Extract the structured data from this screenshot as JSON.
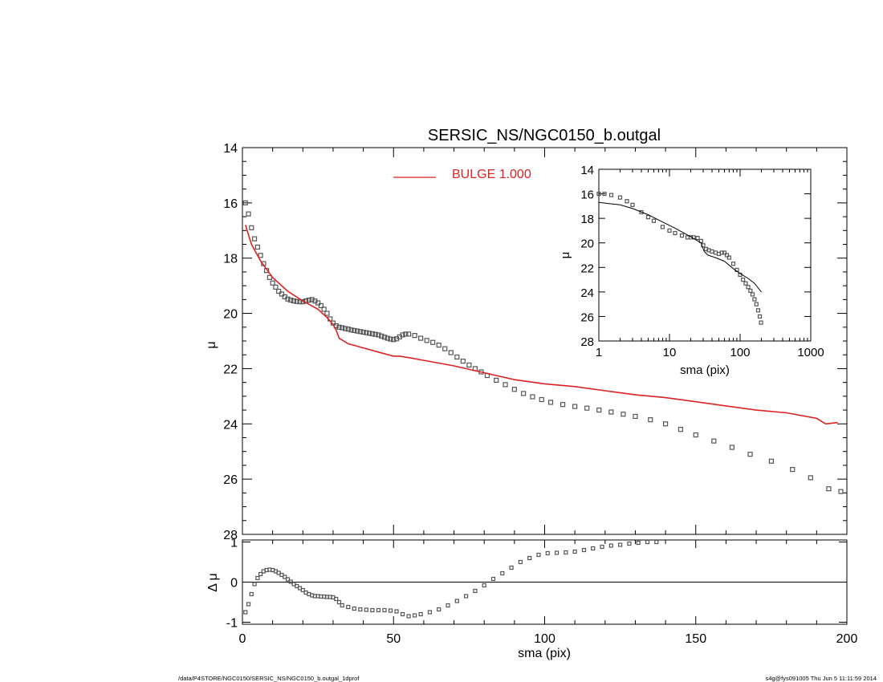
{
  "title": "SERSIC_NS/NGC0150_b.outgal",
  "footer": {
    "left": "/data/P4STORE/NGC0150/SERSIC_NS/NGC0150_b.outgal_1dprof",
    "right": "s4g@fys091005  Thu Jun  5 11:11:59 2014"
  },
  "colors": {
    "model": "#dd2222",
    "data": "#555555",
    "axes": "#000000",
    "inset_model": "#000000"
  },
  "chart_data": [
    {
      "id": "main",
      "type": "scatter",
      "xlabel": "",
      "ylabel": "μ",
      "xlim": [
        0,
        200
      ],
      "ylim": [
        28,
        14
      ],
      "y_inverted": true,
      "xticks": [],
      "yticks": [
        14,
        16,
        18,
        20,
        22,
        24,
        26,
        28
      ],
      "legend": {
        "label": "BULGE  1.000",
        "placement": "top-center"
      },
      "series": [
        {
          "name": "BULGE  1.000",
          "style": "line",
          "x": [
            1,
            3,
            6,
            10,
            15,
            20,
            25,
            28,
            30,
            31,
            32,
            35,
            40,
            45,
            50,
            52,
            55,
            60,
            70,
            80,
            90,
            100,
            110,
            120,
            130,
            140,
            150,
            160,
            170,
            180,
            190,
            193,
            197
          ],
          "values": [
            16.8,
            17.5,
            18.1,
            18.7,
            19.2,
            19.55,
            19.85,
            20.15,
            20.4,
            20.6,
            20.9,
            21.1,
            21.25,
            21.4,
            21.55,
            21.55,
            21.6,
            21.7,
            21.9,
            22.15,
            22.4,
            22.55,
            22.65,
            22.8,
            22.95,
            23.05,
            23.2,
            23.35,
            23.5,
            23.6,
            23.8,
            24.0,
            23.95
          ]
        },
        {
          "style": "markers",
          "x": [
            1,
            2,
            3,
            4,
            5,
            6,
            7,
            8,
            9,
            10,
            11,
            12,
            13,
            14,
            15,
            16,
            17,
            18,
            19,
            20,
            21,
            22,
            23,
            24,
            25,
            26,
            27,
            28,
            29,
            30,
            31,
            32,
            33,
            34,
            35,
            36,
            37,
            38,
            39,
            40,
            41,
            42,
            43,
            44,
            45,
            46,
            47,
            48,
            49,
            50,
            51,
            52,
            53,
            54,
            55,
            57,
            59,
            61,
            63,
            65,
            67,
            69,
            71,
            73,
            75,
            77,
            79,
            81,
            84,
            87,
            90,
            93,
            96,
            99,
            102,
            106,
            110,
            114,
            118,
            122,
            126,
            130,
            135,
            140,
            145,
            150,
            156,
            162,
            168,
            175,
            182,
            188,
            194,
            198
          ],
          "values": [
            16.0,
            16.4,
            16.9,
            17.3,
            17.6,
            17.9,
            18.2,
            18.45,
            18.7,
            18.9,
            19.05,
            19.2,
            19.3,
            19.4,
            19.48,
            19.52,
            19.55,
            19.57,
            19.58,
            19.58,
            19.55,
            19.52,
            19.5,
            19.55,
            19.62,
            19.72,
            19.85,
            20.0,
            20.2,
            20.35,
            20.45,
            20.5,
            20.52,
            20.55,
            20.57,
            20.6,
            20.62,
            20.64,
            20.66,
            20.68,
            20.7,
            20.72,
            20.74,
            20.76,
            20.78,
            20.82,
            20.86,
            20.9,
            20.93,
            20.95,
            20.92,
            20.85,
            20.78,
            20.75,
            20.75,
            20.8,
            20.9,
            20.98,
            21.05,
            21.15,
            21.28,
            21.42,
            21.58,
            21.73,
            21.87,
            22.0,
            22.12,
            22.25,
            22.42,
            22.58,
            22.75,
            22.9,
            23.02,
            23.12,
            23.22,
            23.3,
            23.37,
            23.43,
            23.5,
            23.57,
            23.65,
            23.73,
            23.85,
            24.0,
            24.2,
            24.4,
            24.62,
            24.85,
            25.1,
            25.35,
            25.65,
            25.95,
            26.35,
            26.45
          ]
        }
      ]
    },
    {
      "id": "inset",
      "type": "scatter",
      "xlabel": "sma (pix)",
      "ylabel": "μ",
      "x_scale": "log",
      "xlim": [
        1,
        1000
      ],
      "ylim": [
        28,
        14
      ],
      "y_inverted": true,
      "xticks": [
        "1",
        "10",
        "100",
        "1000"
      ],
      "yticks": [
        14,
        16,
        18,
        20,
        22,
        24,
        26,
        28
      ],
      "series": [
        {
          "style": "line",
          "x": [
            1,
            2,
            3,
            5,
            8,
            12,
            20,
            28,
            31,
            35,
            45,
            60,
            80,
            100,
            130,
            160,
            200
          ],
          "values": [
            16.7,
            16.9,
            17.2,
            17.7,
            18.3,
            18.8,
            19.5,
            20.0,
            20.7,
            21.0,
            21.2,
            21.5,
            22.1,
            22.5,
            22.9,
            23.3,
            24.0
          ]
        },
        {
          "style": "markers",
          "x": [
            1,
            1.2,
            1.5,
            2,
            2.5,
            3,
            4,
            5,
            6,
            8,
            10,
            12,
            15,
            18,
            20,
            22,
            25,
            28,
            30,
            33,
            36,
            40,
            45,
            50,
            55,
            60,
            65,
            70,
            80,
            90,
            100,
            110,
            120,
            130,
            140,
            150,
            160,
            170,
            180,
            190,
            198
          ],
          "values": [
            16.0,
            16.0,
            16.1,
            16.3,
            16.6,
            16.9,
            17.5,
            17.9,
            18.2,
            18.7,
            19.0,
            19.2,
            19.4,
            19.55,
            19.55,
            19.55,
            19.6,
            19.85,
            20.2,
            20.5,
            20.6,
            20.7,
            20.8,
            20.9,
            20.8,
            20.8,
            21.0,
            21.2,
            21.7,
            22.2,
            22.6,
            23.0,
            23.3,
            23.6,
            23.9,
            24.2,
            24.6,
            25.0,
            25.5,
            26.0,
            26.5
          ]
        }
      ]
    },
    {
      "id": "residual",
      "type": "scatter",
      "xlabel": "sma (pix)",
      "ylabel": "Δ μ",
      "xlim": [
        0,
        200
      ],
      "ylim": [
        -1.05,
        1.05
      ],
      "xticks": [
        0,
        50,
        100,
        150,
        200
      ],
      "yticks": [
        -1,
        0,
        1
      ],
      "zero_line": true,
      "series": [
        {
          "style": "markers",
          "x": [
            1,
            2,
            3,
            4,
            5,
            6,
            7,
            8,
            9,
            10,
            11,
            12,
            13,
            14,
            15,
            16,
            17,
            18,
            19,
            20,
            21,
            22,
            23,
            24,
            25,
            26,
            27,
            28,
            29,
            30,
            31,
            32,
            33,
            35,
            37,
            39,
            41,
            43,
            45,
            47,
            49,
            51,
            53,
            55,
            57,
            59,
            62,
            65,
            68,
            71,
            74,
            77,
            80,
            83,
            86,
            89,
            92,
            95,
            98,
            101,
            104,
            107,
            110,
            113,
            116,
            119,
            122,
            125,
            128,
            131,
            134,
            137
          ],
          "values": [
            -0.75,
            -0.55,
            -0.3,
            -0.05,
            0.1,
            0.2,
            0.27,
            0.3,
            0.31,
            0.3,
            0.27,
            0.23,
            0.18,
            0.13,
            0.07,
            0.01,
            -0.05,
            -0.1,
            -0.15,
            -0.2,
            -0.26,
            -0.3,
            -0.33,
            -0.35,
            -0.35,
            -0.36,
            -0.36,
            -0.37,
            -0.37,
            -0.38,
            -0.42,
            -0.5,
            -0.58,
            -0.62,
            -0.66,
            -0.68,
            -0.69,
            -0.7,
            -0.7,
            -0.7,
            -0.71,
            -0.73,
            -0.8,
            -0.85,
            -0.83,
            -0.8,
            -0.75,
            -0.68,
            -0.58,
            -0.47,
            -0.35,
            -0.22,
            -0.08,
            0.08,
            0.22,
            0.36,
            0.5,
            0.6,
            0.68,
            0.72,
            0.73,
            0.74,
            0.76,
            0.8,
            0.84,
            0.88,
            0.91,
            0.93,
            0.96,
            0.98,
            1.0,
            1.0
          ]
        }
      ]
    }
  ]
}
